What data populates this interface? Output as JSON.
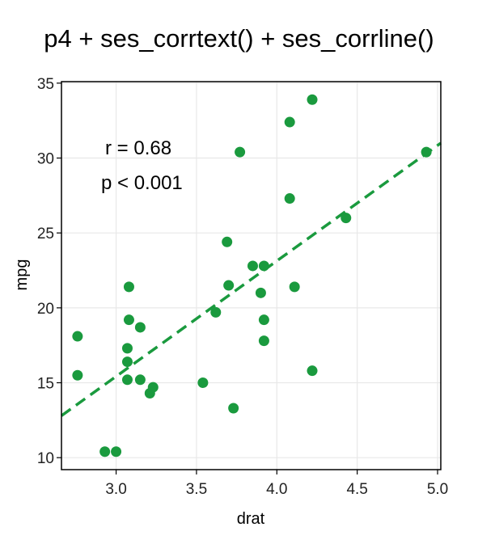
{
  "title": "p4 + ses_corrtext() + ses_corrline()",
  "colors": {
    "point": "#1a9a3e",
    "line": "#1a9a3e",
    "grid": "#e8e8e8",
    "axis": "#000000"
  },
  "chart_data": {
    "type": "scatter",
    "xlabel": "drat",
    "ylabel": "mpg",
    "xlim": [
      2.66,
      5.02
    ],
    "ylim": [
      9.2,
      35.1
    ],
    "xticks": [
      3.0,
      3.5,
      4.0,
      4.5,
      5.0
    ],
    "xtick_labels": [
      "3.0",
      "3.5",
      "4.0",
      "4.5",
      "5.0"
    ],
    "yticks": [
      10,
      15,
      20,
      25,
      30,
      35
    ],
    "ytick_labels": [
      "10",
      "15",
      "20",
      "25",
      "30",
      "35"
    ],
    "grid": true,
    "points": [
      {
        "x": 2.76,
        "y": 18.1
      },
      {
        "x": 2.76,
        "y": 15.5
      },
      {
        "x": 2.93,
        "y": 10.4
      },
      {
        "x": 3.0,
        "y": 10.4
      },
      {
        "x": 3.07,
        "y": 17.3
      },
      {
        "x": 3.07,
        "y": 16.4
      },
      {
        "x": 3.07,
        "y": 15.2
      },
      {
        "x": 3.08,
        "y": 21.4
      },
      {
        "x": 3.08,
        "y": 19.2
      },
      {
        "x": 3.15,
        "y": 18.7
      },
      {
        "x": 3.15,
        "y": 15.2
      },
      {
        "x": 3.21,
        "y": 14.3
      },
      {
        "x": 3.23,
        "y": 14.7
      },
      {
        "x": 3.54,
        "y": 15.0
      },
      {
        "x": 3.62,
        "y": 19.7
      },
      {
        "x": 3.69,
        "y": 24.4
      },
      {
        "x": 3.7,
        "y": 21.5
      },
      {
        "x": 3.73,
        "y": 13.3
      },
      {
        "x": 3.77,
        "y": 30.4
      },
      {
        "x": 3.85,
        "y": 22.8
      },
      {
        "x": 3.9,
        "y": 21.0
      },
      {
        "x": 3.92,
        "y": 22.8
      },
      {
        "x": 3.92,
        "y": 19.2
      },
      {
        "x": 3.92,
        "y": 17.8
      },
      {
        "x": 4.08,
        "y": 32.4
      },
      {
        "x": 4.08,
        "y": 27.3
      },
      {
        "x": 4.11,
        "y": 21.4
      },
      {
        "x": 4.22,
        "y": 33.9
      },
      {
        "x": 4.22,
        "y": 15.8
      },
      {
        "x": 4.43,
        "y": 26.0
      },
      {
        "x": 4.93,
        "y": 30.4
      }
    ],
    "fit_line": {
      "style": "dashed",
      "from": {
        "x": 2.66,
        "y": 12.8
      },
      "to": {
        "x": 5.02,
        "y": 31.0
      }
    },
    "annotations": [
      "r = 0.68",
      "p < 0.001"
    ]
  }
}
